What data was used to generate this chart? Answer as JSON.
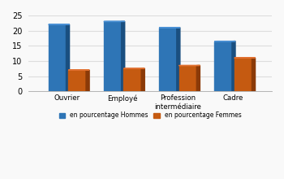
{
  "category_labels": [
    "Ouvrier",
    "Employé",
    "Profession\nintermédiaire",
    "Cadre"
  ],
  "hommes": [
    22,
    23,
    21,
    16.5
  ],
  "femmes": [
    7,
    7.5,
    8.5,
    11
  ],
  "bar_color_hommes": "#2e75b6",
  "bar_color_hommes_top": "#4a90d4",
  "bar_color_hommes_side": "#1a4f80",
  "bar_color_femmes": "#c55a11",
  "bar_color_femmes_top": "#e07030",
  "bar_color_femmes_side": "#8b3a08",
  "legend_hommes": "en pourcentage Hommes",
  "legend_femmes": "en pourcentage Femmes",
  "ylim": [
    0,
    25
  ],
  "yticks": [
    0,
    5,
    10,
    15,
    20,
    25
  ],
  "background_color": "#f9f9f9",
  "grid_color": "#dddddd"
}
